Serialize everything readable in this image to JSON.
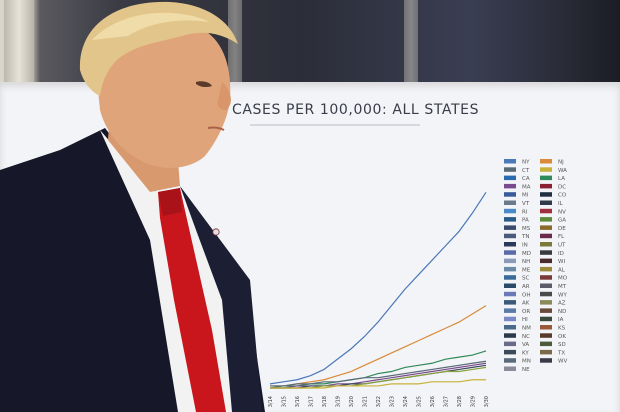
{
  "chart_data": {
    "type": "line",
    "title": "CASES PER 100,000: ALL STATES",
    "x": [
      "3/14",
      "3/15",
      "3/16",
      "3/17",
      "3/18",
      "3/19",
      "3/20",
      "3/21",
      "3/22",
      "3/23",
      "3/24",
      "3/25",
      "3/26",
      "3/27",
      "3/28",
      "3/29",
      "3/30"
    ],
    "ylim": [
      0,
      100
    ],
    "grid": false,
    "legend_placement": "right",
    "series": [
      {
        "name": "NY",
        "color": "#4a78b8",
        "values": [
          2,
          3,
          4,
          6,
          9,
          14,
          19,
          25,
          32,
          40,
          48,
          55,
          62,
          69,
          76,
          85,
          95
        ]
      },
      {
        "name": "NJ",
        "color": "#d98a3a",
        "values": [
          1,
          1,
          2,
          3,
          4,
          6,
          8,
          11,
          14,
          17,
          20,
          23,
          26,
          29,
          32,
          36,
          40
        ]
      },
      {
        "name": "LA",
        "color": "#2f8a5a",
        "values": [
          0,
          1,
          1,
          2,
          2,
          3,
          4,
          5,
          7,
          8,
          10,
          11,
          12,
          14,
          15,
          16,
          18
        ]
      },
      {
        "name": "WA",
        "color": "#5a6b78",
        "values": [
          1,
          1,
          2,
          2,
          3,
          3,
          4,
          5,
          5,
          6,
          7,
          8,
          9,
          10,
          11,
          12,
          13
        ]
      },
      {
        "name": "MA",
        "color": "#7a4b8c",
        "values": [
          0,
          0,
          1,
          1,
          1,
          2,
          2,
          3,
          4,
          5,
          6,
          7,
          8,
          9,
          10,
          11,
          12
        ]
      },
      {
        "name": "CT",
        "color": "#3b4a5e",
        "values": [
          0,
          0,
          0,
          1,
          1,
          1,
          2,
          2,
          3,
          4,
          5,
          6,
          7,
          8,
          9,
          10,
          11
        ]
      },
      {
        "name": "MI",
        "color": "#8aa33c",
        "values": [
          0,
          0,
          0,
          0,
          1,
          1,
          1,
          2,
          3,
          4,
          5,
          6,
          7,
          8,
          8,
          9,
          10
        ]
      },
      {
        "name": "CA",
        "color": "#c9b23a",
        "values": [
          0,
          0,
          0,
          0,
          0,
          1,
          1,
          1,
          1,
          2,
          2,
          2,
          3,
          3,
          3,
          4,
          4
        ]
      }
    ],
    "legend_entries": [
      "NY",
      "NJ",
      "CT",
      "WA",
      "CA",
      "LA",
      "MA",
      "DC",
      "MI",
      "CO",
      "VT",
      "IL",
      "RI",
      "NV",
      "PA",
      "GA",
      "MS",
      "DE",
      "TN",
      "FL",
      "IN",
      "UT",
      "MD",
      "ID",
      "NH",
      "WI",
      "ME",
      "AL",
      "SC",
      "MO",
      "AR",
      "MT",
      "OH",
      "WY",
      "AK",
      "AZ",
      "OR",
      "ND",
      "HI",
      "IA",
      "NM",
      "KS",
      "NC",
      "OK",
      "VA",
      "SD",
      "KY",
      "TX",
      "MN",
      "WV",
      "NE"
    ],
    "legend_colors": [
      "#4a78b8",
      "#d98a3a",
      "#5a6b78",
      "#c9b23a",
      "#2a6ab0",
      "#2f8a5a",
      "#7a4b8c",
      "#8a2030",
      "#3a5a9a",
      "#203040",
      "#6a7a8a",
      "#303a4a",
      "#4a8ac8",
      "#a03040",
      "#2a5a8a",
      "#5a8a3a",
      "#3a4a6a",
      "#8a6a2a",
      "#4a5a7a",
      "#6a2a4a",
      "#2a3a5a",
      "#7a7a3a",
      "#5a6aa8",
      "#3a3a3a",
      "#8a9ab8",
      "#4a2a2a",
      "#6a8aa8",
      "#9a8a3a",
      "#3a6a9a",
      "#7a3a3a",
      "#2a4a6a",
      "#5a5a6a",
      "#6a7ab8",
      "#4a4a4a",
      "#3a5a7a",
      "#8a8a5a",
      "#5a7aa8",
      "#6a4a3a",
      "#7a8ac8",
      "#3a4a3a",
      "#4a6a8a",
      "#9a5a3a",
      "#2a3a4a",
      "#5a3a2a",
      "#6a6a8a",
      "#4a5a3a",
      "#3a4a5a",
      "#7a6a4a",
      "#5a6a7a",
      "#3a3a4a",
      "#8a8a9a"
    ]
  }
}
